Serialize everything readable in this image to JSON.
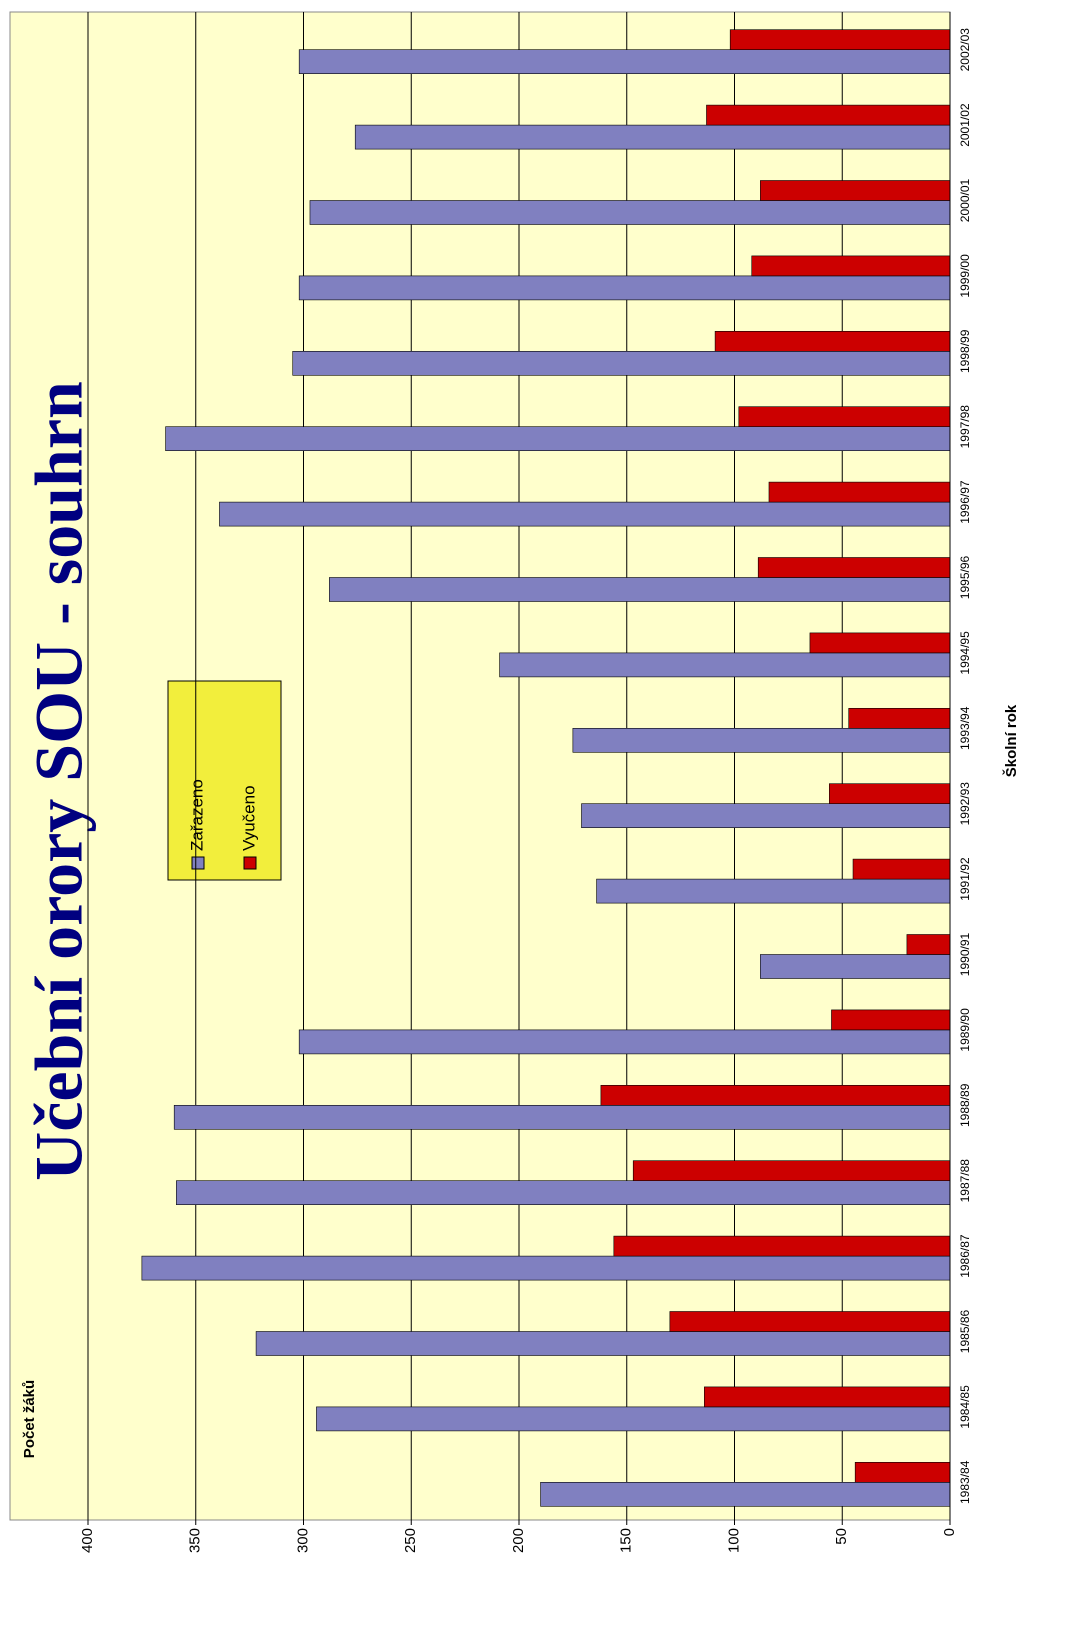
{
  "chart_data": {
    "type": "bar",
    "title": "Učební orory SOU - souhrn",
    "y_label": "Počet žáků",
    "x_label": "Školní rok",
    "categories": [
      "1983/84",
      "1984/85",
      "1985/86",
      "1986/87",
      "1987/88",
      "1988/89",
      "1989/90",
      "1990/91",
      "1991/92",
      "1992/93",
      "1993/94",
      "1994/95",
      "1995/96",
      "1996/97",
      "1997/98",
      "1998/99",
      "1999/00",
      "2000/01",
      "2001/02",
      "2002/03"
    ],
    "series": [
      {
        "name": "Zařazeno",
        "color": "#8080c0",
        "values": [
          190,
          294,
          322,
          375,
          359,
          360,
          302,
          88,
          164,
          171,
          175,
          209,
          288,
          339,
          364,
          305,
          302,
          297,
          276,
          302
        ]
      },
      {
        "name": "Vyučeno",
        "color": "#cc0000",
        "values": [
          44,
          114,
          130,
          156,
          147,
          162,
          55,
          20,
          45,
          56,
          47,
          65,
          89,
          84,
          98,
          109,
          92,
          88,
          113,
          102
        ]
      }
    ],
    "ylim": [
      0,
      400
    ],
    "yticks": [
      0,
      50,
      100,
      150,
      200,
      250,
      300,
      350,
      400
    ],
    "grid": true
  }
}
